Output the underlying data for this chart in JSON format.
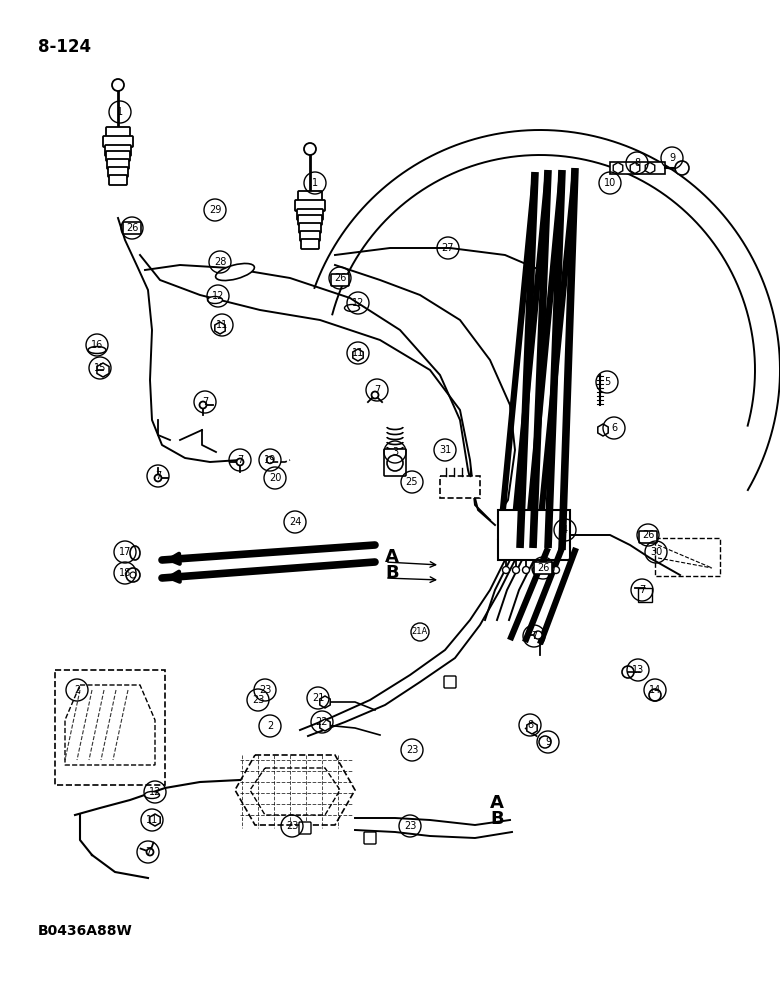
{
  "title": "8-124",
  "bottom_label": "B0436A88W",
  "bg": "#ffffff",
  "lc": "#000000",
  "figsize": [
    7.8,
    10.0
  ],
  "dpi": 100,
  "xlim": [
    0,
    780
  ],
  "ylim": [
    0,
    1000
  ]
}
